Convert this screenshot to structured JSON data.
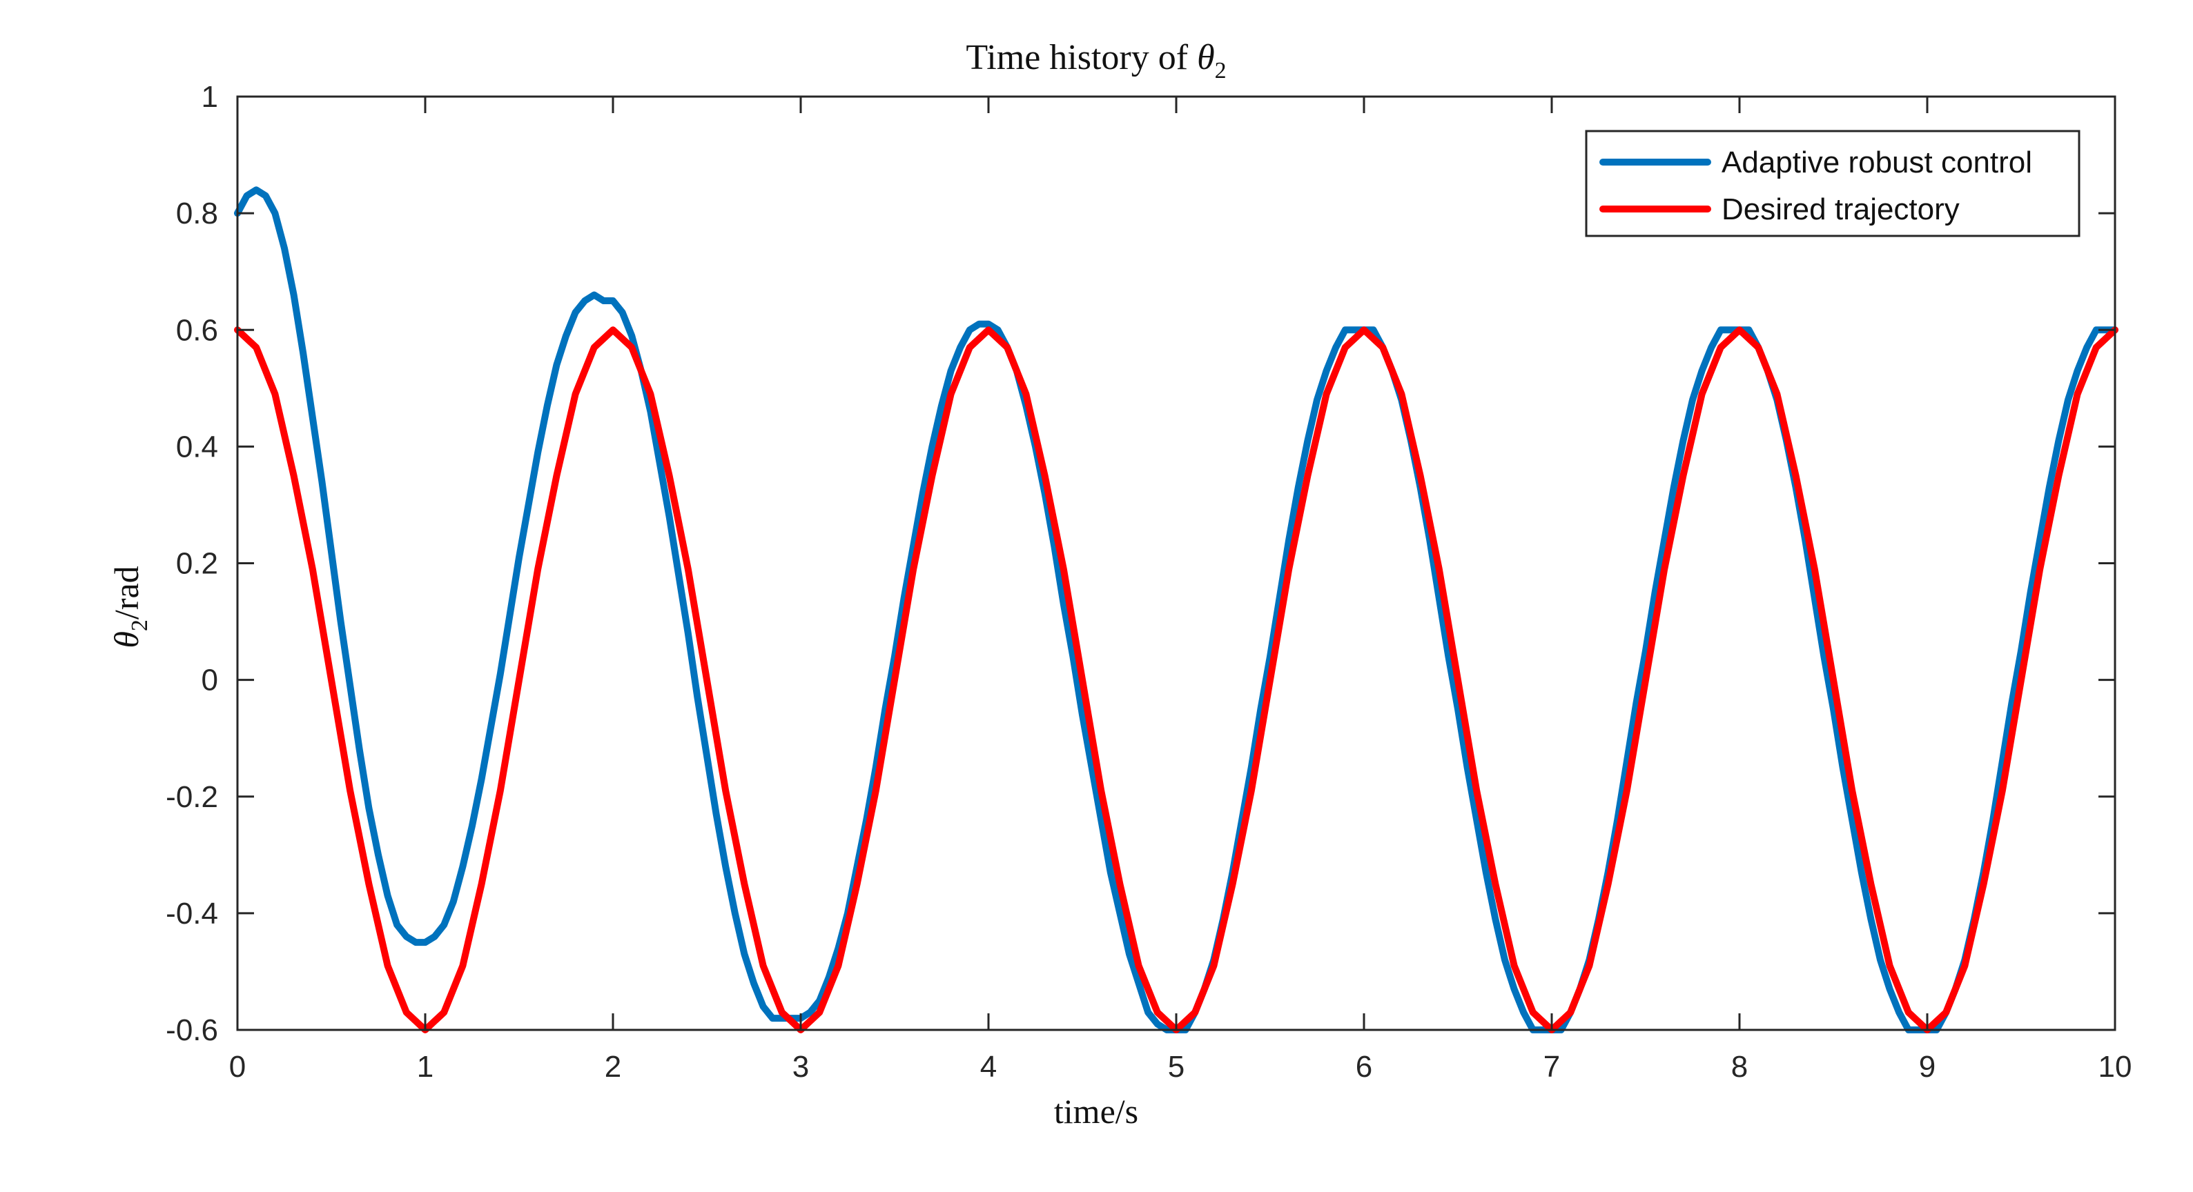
{
  "chart_data": {
    "type": "line",
    "title": "Time history of θ2",
    "title_parts": {
      "prefix": "Time history of ",
      "symbol": "θ",
      "subscript": "2"
    },
    "xlabel": "time/s",
    "ylabel": "θ2/rad",
    "ylabel_parts": {
      "symbol": "θ",
      "subscript": "2",
      "suffix": "/rad"
    },
    "xlim": [
      0,
      10
    ],
    "ylim": [
      -0.6,
      1
    ],
    "x_ticks": [
      0,
      1,
      2,
      3,
      4,
      5,
      6,
      7,
      8,
      9,
      10
    ],
    "y_ticks": [
      -0.6,
      -0.4,
      -0.2,
      0,
      0.2,
      0.4,
      0.6,
      0.8,
      1
    ],
    "grid": false,
    "legend_position": "top-right",
    "series": [
      {
        "name": "Adaptive robust control",
        "color": "#0072BD",
        "x": [
          0,
          0.05,
          0.1,
          0.15,
          0.2,
          0.25,
          0.3,
          0.35,
          0.4,
          0.45,
          0.5,
          0.55,
          0.6,
          0.65,
          0.7,
          0.75,
          0.8,
          0.85,
          0.9,
          0.95,
          1,
          1.05,
          1.1,
          1.15,
          1.2,
          1.25,
          1.3,
          1.35,
          1.4,
          1.45,
          1.5,
          1.55,
          1.6,
          1.65,
          1.7,
          1.75,
          1.8,
          1.85,
          1.9,
          1.95,
          2,
          2.05,
          2.1,
          2.15,
          2.2,
          2.25,
          2.3,
          2.35,
          2.4,
          2.45,
          2.5,
          2.55,
          2.6,
          2.65,
          2.7,
          2.75,
          2.8,
          2.85,
          2.9,
          2.95,
          3,
          3.05,
          3.1,
          3.15,
          3.2,
          3.25,
          3.3,
          3.35,
          3.4,
          3.45,
          3.5,
          3.55,
          3.6,
          3.65,
          3.7,
          3.75,
          3.8,
          3.85,
          3.9,
          3.95,
          4,
          4.05,
          4.1,
          4.15,
          4.2,
          4.25,
          4.3,
          4.35,
          4.4,
          4.45,
          4.5,
          4.55,
          4.6,
          4.65,
          4.7,
          4.75,
          4.8,
          4.85,
          4.9,
          4.95,
          5,
          5.05,
          5.1,
          5.15,
          5.2,
          5.25,
          5.3,
          5.35,
          5.4,
          5.45,
          5.5,
          5.55,
          5.6,
          5.65,
          5.7,
          5.75,
          5.8,
          5.85,
          5.9,
          5.95,
          6,
          6.05,
          6.1,
          6.15,
          6.2,
          6.25,
          6.3,
          6.35,
          6.4,
          6.45,
          6.5,
          6.55,
          6.6,
          6.65,
          6.7,
          6.75,
          6.8,
          6.85,
          6.9,
          6.95,
          7,
          7.05,
          7.1,
          7.15,
          7.2,
          7.25,
          7.3,
          7.35,
          7.4,
          7.45,
          7.5,
          7.55,
          7.6,
          7.65,
          7.7,
          7.75,
          7.8,
          7.85,
          7.9,
          7.95,
          8,
          8.05,
          8.1,
          8.15,
          8.2,
          8.25,
          8.3,
          8.35,
          8.4,
          8.45,
          8.5,
          8.55,
          8.6,
          8.65,
          8.7,
          8.75,
          8.8,
          8.85,
          8.9,
          8.95,
          9,
          9.05,
          9.1,
          9.15,
          9.2,
          9.25,
          9.3,
          9.35,
          9.4,
          9.45,
          9.5,
          9.55,
          9.6,
          9.65,
          9.7,
          9.75,
          9.8,
          9.85,
          9.9,
          9.95,
          10
        ],
        "y": [
          0.8,
          0.83,
          0.84,
          0.83,
          0.8,
          0.74,
          0.66,
          0.56,
          0.45,
          0.34,
          0.22,
          0.1,
          -0.01,
          -0.12,
          -0.22,
          -0.3,
          -0.37,
          -0.42,
          -0.44,
          -0.45,
          -0.45,
          -0.44,
          -0.42,
          -0.38,
          -0.32,
          -0.25,
          -0.17,
          -0.08,
          0.01,
          0.11,
          0.21,
          0.3,
          0.39,
          0.47,
          0.54,
          0.59,
          0.63,
          0.65,
          0.66,
          0.65,
          0.65,
          0.63,
          0.59,
          0.53,
          0.46,
          0.37,
          0.28,
          0.18,
          0.08,
          -0.03,
          -0.13,
          -0.23,
          -0.32,
          -0.4,
          -0.47,
          -0.52,
          -0.56,
          -0.58,
          -0.58,
          -0.58,
          -0.58,
          -0.57,
          -0.55,
          -0.51,
          -0.46,
          -0.4,
          -0.32,
          -0.24,
          -0.15,
          -0.05,
          0.04,
          0.14,
          0.23,
          0.32,
          0.4,
          0.47,
          0.53,
          0.57,
          0.6,
          0.61,
          0.61,
          0.6,
          0.57,
          0.53,
          0.47,
          0.4,
          0.32,
          0.23,
          0.13,
          0.04,
          -0.06,
          -0.15,
          -0.24,
          -0.33,
          -0.4,
          -0.47,
          -0.52,
          -0.57,
          -0.59,
          -0.6,
          -0.6,
          -0.6,
          -0.57,
          -0.53,
          -0.48,
          -0.41,
          -0.33,
          -0.24,
          -0.15,
          -0.05,
          0.04,
          0.14,
          0.24,
          0.33,
          0.41,
          0.48,
          0.53,
          0.57,
          0.6,
          0.6,
          0.6,
          0.6,
          0.57,
          0.53,
          0.48,
          0.41,
          0.33,
          0.24,
          0.14,
          0.04,
          -0.05,
          -0.15,
          -0.24,
          -0.33,
          -0.41,
          -0.48,
          -0.53,
          -0.57,
          -0.6,
          -0.6,
          -0.6,
          -0.6,
          -0.57,
          -0.53,
          -0.48,
          -0.41,
          -0.33,
          -0.24,
          -0.14,
          -0.04,
          0.05,
          0.15,
          0.24,
          0.33,
          0.41,
          0.48,
          0.53,
          0.57,
          0.6,
          0.6,
          0.6,
          0.6,
          0.57,
          0.53,
          0.48,
          0.41,
          0.33,
          0.24,
          0.14,
          0.04,
          -0.05,
          -0.15,
          -0.24,
          -0.33,
          -0.41,
          -0.48,
          -0.53,
          -0.57,
          -0.6,
          -0.6,
          -0.6,
          -0.6,
          -0.57,
          -0.53,
          -0.48,
          -0.41,
          -0.33,
          -0.24,
          -0.14,
          -0.04,
          0.05,
          0.15,
          0.24,
          0.33,
          0.41,
          0.48,
          0.53,
          0.57,
          0.6,
          0.6,
          0.6
        ]
      },
      {
        "name": "Desired trajectory",
        "color": "#FF0000",
        "x": [
          0,
          0.1,
          0.2,
          0.3,
          0.4,
          0.5,
          0.6,
          0.7,
          0.8,
          0.9,
          1,
          1.1,
          1.2,
          1.3,
          1.4,
          1.5,
          1.6,
          1.7,
          1.8,
          1.9,
          2,
          2.1,
          2.2,
          2.3,
          2.4,
          2.5,
          2.6,
          2.7,
          2.8,
          2.9,
          3,
          3.1,
          3.2,
          3.3,
          3.4,
          3.5,
          3.6,
          3.7,
          3.8,
          3.9,
          4,
          4.1,
          4.2,
          4.3,
          4.4,
          4.5,
          4.6,
          4.7,
          4.8,
          4.9,
          5,
          5.1,
          5.2,
          5.3,
          5.4,
          5.5,
          5.6,
          5.7,
          5.8,
          5.9,
          6,
          6.1,
          6.2,
          6.3,
          6.4,
          6.5,
          6.6,
          6.7,
          6.8,
          6.9,
          7,
          7.1,
          7.2,
          7.3,
          7.4,
          7.5,
          7.6,
          7.7,
          7.8,
          7.9,
          8,
          8.1,
          8.2,
          8.3,
          8.4,
          8.5,
          8.6,
          8.7,
          8.8,
          8.9,
          9,
          9.1,
          9.2,
          9.3,
          9.4,
          9.5,
          9.6,
          9.7,
          9.8,
          9.9,
          10
        ],
        "y": [
          0.6,
          0.57,
          0.49,
          0.35,
          0.19,
          0,
          -0.19,
          -0.35,
          -0.49,
          -0.57,
          -0.6,
          -0.57,
          -0.49,
          -0.35,
          -0.19,
          0,
          0.19,
          0.35,
          0.49,
          0.57,
          0.6,
          0.57,
          0.49,
          0.35,
          0.19,
          0,
          -0.19,
          -0.35,
          -0.49,
          -0.57,
          -0.6,
          -0.57,
          -0.49,
          -0.35,
          -0.19,
          0,
          0.19,
          0.35,
          0.49,
          0.57,
          0.6,
          0.57,
          0.49,
          0.35,
          0.19,
          0,
          -0.19,
          -0.35,
          -0.49,
          -0.57,
          -0.6,
          -0.57,
          -0.49,
          -0.35,
          -0.19,
          0,
          0.19,
          0.35,
          0.49,
          0.57,
          0.6,
          0.57,
          0.49,
          0.35,
          0.19,
          0,
          -0.19,
          -0.35,
          -0.49,
          -0.57,
          -0.6,
          -0.57,
          -0.49,
          -0.35,
          -0.19,
          0,
          0.19,
          0.35,
          0.49,
          0.57,
          0.6,
          0.57,
          0.49,
          0.35,
          0.19,
          0,
          -0.19,
          -0.35,
          -0.49,
          -0.57,
          -0.6,
          -0.57,
          -0.49,
          -0.35,
          -0.19,
          0,
          0.19,
          0.35,
          0.49,
          0.57,
          0.6
        ]
      }
    ]
  }
}
